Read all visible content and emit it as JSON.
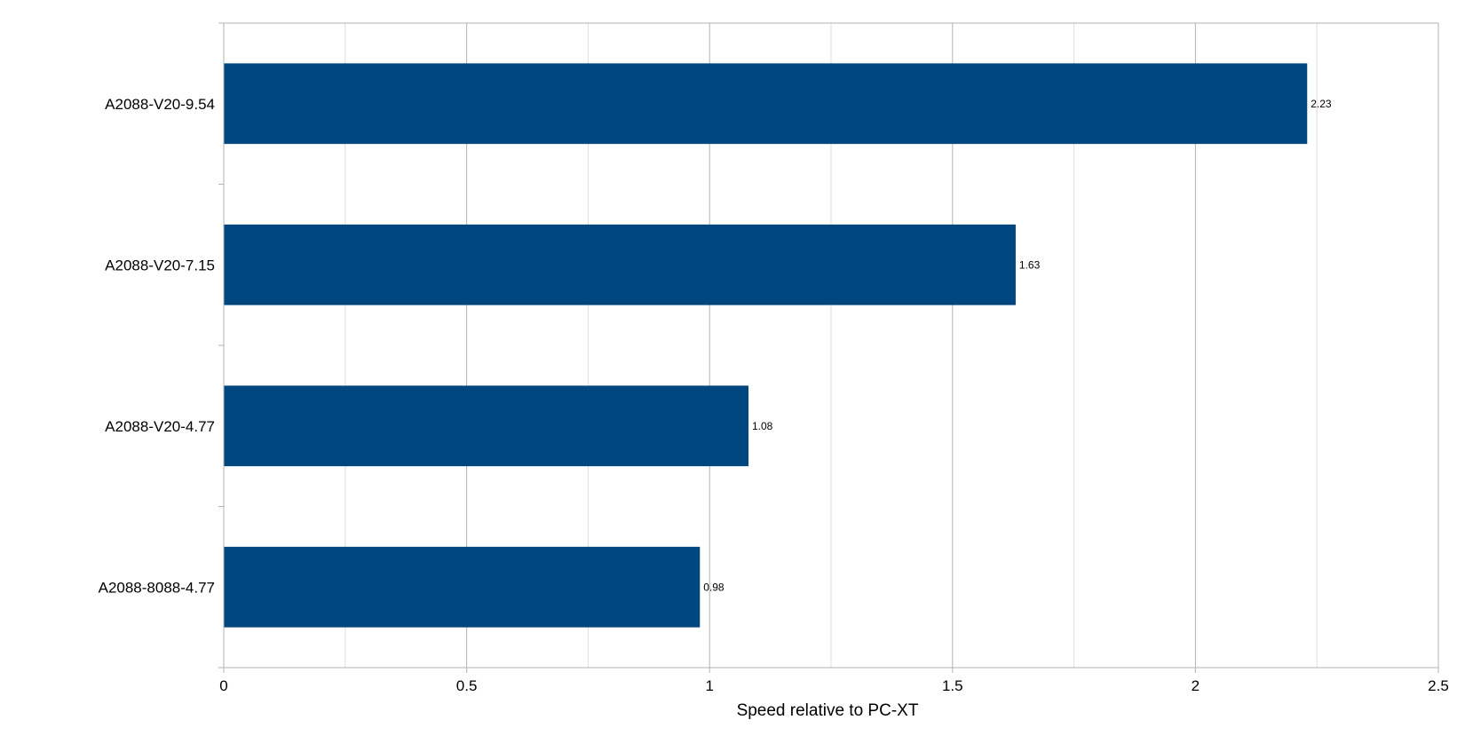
{
  "chart_data": {
    "type": "bar",
    "orientation": "horizontal",
    "categories": [
      "A2088-V20-9.54",
      "A2088-V20-7.15",
      "A2088-V20-4.77",
      "A2088-8088-4.77"
    ],
    "values": [
      2.23,
      1.63,
      1.08,
      0.98
    ],
    "data_labels": [
      "2.23",
      "1.63",
      "1.08",
      "0.98"
    ],
    "title": "",
    "xlabel": "Speed relative to PC-XT",
    "ylabel": "",
    "xlim": [
      0,
      2.5
    ],
    "x_ticks": [
      0,
      0.5,
      1,
      1.5,
      2,
      2.5
    ],
    "x_tick_labels": [
      "0",
      "0.5",
      "1",
      "1.5",
      "2",
      "2.5"
    ],
    "grid": "vertical major and minor",
    "legend": "none",
    "bar_color": "#00477f"
  }
}
